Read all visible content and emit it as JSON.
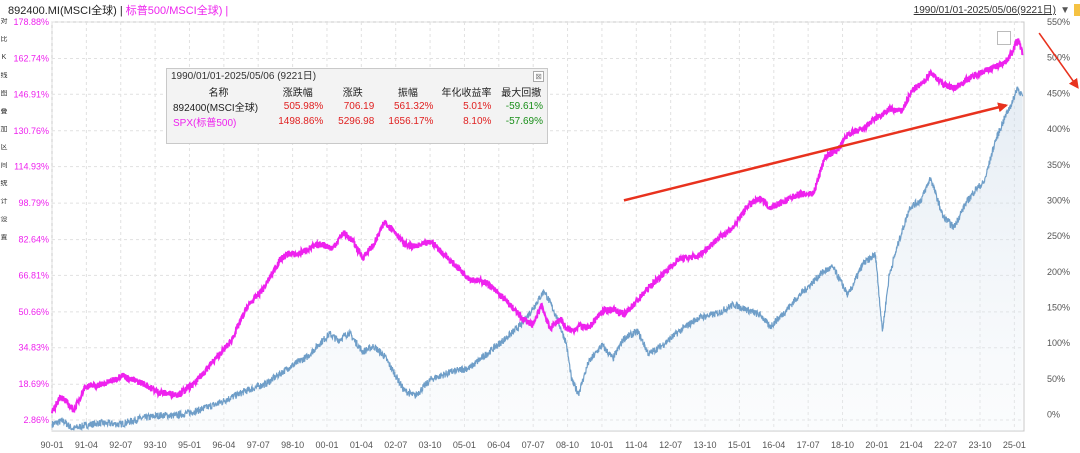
{
  "header": {
    "series1": "892400.MI(MSCI全球)",
    "separator": " | ",
    "series2": "标普500/MSCI全球)",
    "trailing": " |"
  },
  "toolbar": [
    "对",
    "比",
    "K",
    "线",
    "图",
    "叠",
    "加",
    "区",
    "间",
    "统",
    "计",
    "设",
    "置"
  ],
  "range_label": "1990/01/01-2025/05/06(9221日)",
  "range_arrow": "▼",
  "colors": {
    "msci": "#6f9ec8",
    "spx": "#ee22ee",
    "arrow": "#e8321e",
    "grid": "#e1e1e1"
  },
  "stats": {
    "caption": "1990/01/01-2025/05/06 (9221日)",
    "close": "⊠",
    "headers": [
      "名称",
      "涨跌幅",
      "涨跌",
      "振幅",
      "年化收益率",
      "最大回撤"
    ],
    "rows": [
      {
        "name": "892400(MSCI全球)",
        "chg_pct": "505.98%",
        "chg": "706.19",
        "amplitude": "561.32%",
        "annual": "5.01%",
        "drawdown": "-59.61%"
      },
      {
        "name": "SPX(标普500)",
        "chg_pct": "1498.86%",
        "chg": "5296.98",
        "amplitude": "1656.17%",
        "annual": "8.10%",
        "drawdown": "-57.69%"
      }
    ]
  },
  "chart_data": {
    "type": "line",
    "x_unit": "year",
    "xlim": [
      1990.0,
      2025.35
    ],
    "x_tick_labels": [
      "90-01",
      "91-04",
      "92-07",
      "93-10",
      "95-01",
      "96-04",
      "97-07",
      "98-10",
      "00-01",
      "01-04",
      "02-07",
      "03-10",
      "05-01",
      "06-04",
      "07-07",
      "08-10",
      "10-01",
      "11-04",
      "12-07",
      "13-10",
      "15-01",
      "16-04",
      "17-07",
      "18-10",
      "20-01",
      "21-04",
      "22-07",
      "23-10",
      "25-01"
    ],
    "y_left": {
      "ticks": [
        2.86,
        18.69,
        34.83,
        50.66,
        66.81,
        82.64,
        98.79,
        114.93,
        130.76,
        146.91,
        162.74,
        178.88
      ],
      "tick_labels": [
        "2.86%",
        "18.69%",
        "34.83%",
        "50.66%",
        "66.81%",
        "82.64%",
        "98.79%",
        "114.93%",
        "130.76%",
        "146.91%",
        "162.74%",
        "178.88%"
      ],
      "ylim": [
        -2.0,
        178.88
      ]
    },
    "y_right": {
      "tick_labels": [
        "0%",
        "50%",
        "100%",
        "150%",
        "200%",
        "250%",
        "300%",
        "350%",
        "400%",
        "450%",
        "500%",
        "550%"
      ],
      "ticks": [
        0,
        50,
        100,
        150,
        200,
        250,
        300,
        350,
        400,
        450,
        500,
        550
      ],
      "ylim": [
        -23,
        550
      ]
    },
    "series": [
      {
        "name": "892400(MSCI全球)",
        "axis": "left",
        "x": [
          1990.0,
          1990.4,
          1990.75,
          1991.2,
          1991.7,
          1992.5,
          1993.2,
          1994.0,
          1994.5,
          1995.3,
          1996.0,
          1997.0,
          1997.8,
          1998.6,
          1999.3,
          1999.8,
          2000.1,
          2000.4,
          2000.8,
          2001.3,
          2001.7,
          2002.1,
          2002.5,
          2002.8,
          2003.2,
          2003.8,
          2004.5,
          2005.2,
          2006.0,
          2006.6,
          2007.1,
          2007.5,
          2007.9,
          2008.3,
          2008.7,
          2008.9,
          2009.15,
          2009.5,
          2010.0,
          2010.4,
          2010.8,
          2011.3,
          2011.7,
          2012.2,
          2012.8,
          2013.5,
          2014.2,
          2014.8,
          2015.3,
          2015.8,
          2016.1,
          2016.6,
          2017.1,
          2017.6,
          2018.0,
          2018.4,
          2018.95,
          2019.5,
          2019.95,
          2020.2,
          2020.45,
          2020.8,
          2021.2,
          2021.6,
          2021.95,
          2022.4,
          2022.8,
          2023.2,
          2023.6,
          2023.9,
          2024.3,
          2024.7,
          2024.95,
          2025.1,
          2025.2,
          2025.3
        ],
        "y": [
          1.0,
          2.5,
          -1.0,
          0.5,
          1.5,
          1.0,
          3.5,
          5.0,
          4.8,
          7.0,
          10.0,
          15.5,
          19.0,
          26.0,
          31.0,
          37.5,
          41.0,
          38.0,
          41.5,
          33.0,
          35.5,
          31.0,
          22.5,
          16.0,
          13.5,
          21.0,
          24.0,
          26.0,
          34.0,
          40.0,
          45.5,
          52.5,
          60.0,
          50.0,
          37.0,
          20.5,
          14.5,
          28.0,
          36.0,
          30.0,
          39.0,
          42.0,
          32.0,
          36.0,
          42.0,
          48.0,
          50.0,
          54.0,
          51.5,
          49.0,
          44.0,
          50.0,
          57.0,
          63.0,
          68.0,
          70.5,
          58.0,
          72.0,
          76.0,
          42.0,
          67.0,
          82.0,
          97.0,
          100.0,
          110.0,
          93.0,
          88.0,
          98.0,
          105.0,
          108.0,
          126.0,
          138.0,
          144.0,
          150.0,
          148.0,
          146.0
        ]
      },
      {
        "name": "SPX(标普500)",
        "axis": "right",
        "x": [
          1990.0,
          1990.3,
          1990.8,
          1991.2,
          1991.8,
          1992.3,
          1992.55,
          1992.8,
          1993.3,
          1993.9,
          1994.6,
          1995.2,
          1995.8,
          1996.5,
          1997.1,
          1997.7,
          1998.3,
          1998.6,
          1998.9,
          1999.3,
          1999.8,
          2000.2,
          2000.6,
          2000.9,
          2001.3,
          2001.7,
          2002.1,
          2002.5,
          2002.8,
          2003.2,
          2003.8,
          2004.5,
          2005.2,
          2005.8,
          2006.5,
          2007.1,
          2007.5,
          2007.8,
          2008.1,
          2008.5,
          2008.7,
          2008.95,
          2009.2,
          2009.5,
          2010.0,
          2010.4,
          2010.8,
          2011.3,
          2011.7,
          2012.3,
          2012.8,
          2013.5,
          2014.2,
          2014.8,
          2015.3,
          2015.8,
          2016.1,
          2016.6,
          2017.1,
          2017.7,
          2018.1,
          2018.6,
          2018.95,
          2019.5,
          2019.95,
          2020.2,
          2020.45,
          2020.9,
          2021.3,
          2021.7,
          2021.95,
          2022.4,
          2022.8,
          2023.3,
          2023.8,
          2024.2,
          2024.7,
          2024.95,
          2025.1,
          2025.2,
          2025.3
        ],
        "y": [
          2.0,
          26.0,
          6.0,
          39.0,
          42.0,
          49.0,
          56.0,
          50.0,
          44.0,
          31.0,
          28.0,
          44.0,
          72.0,
          102.0,
          151.0,
          177.0,
          217.0,
          226.0,
          224.0,
          232.0,
          239.0,
          233.0,
          255.0,
          245.0,
          220.0,
          238.0,
          270.0,
          255.0,
          239.0,
          235.0,
          242.0,
          215.0,
          190.0,
          185.0,
          160.0,
          135.0,
          125.0,
          155.0,
          120.0,
          135.0,
          120.0,
          118.0,
          125.0,
          120.0,
          145.0,
          148.0,
          140.0,
          160.0,
          178.0,
          200.0,
          218.0,
          222.0,
          246.0,
          263.0,
          293.0,
          303.0,
          290.0,
          298.0,
          308.0,
          310.0,
          360.0,
          372.0,
          393.0,
          400.0,
          415.0,
          420.0,
          428.0,
          425.0,
          455.0,
          465.0,
          480.0,
          463.0,
          457.0,
          470.0,
          480.0,
          485.0,
          495.0,
          510.0,
          525.0,
          518.0,
          505.0
        ]
      }
    ],
    "annotation_arrows": [
      {
        "from": [
          2010.8,
          100.0
        ],
        "to": [
          2024.7,
          142.0
        ],
        "axis": "left"
      },
      {
        "from": [
          2025.9,
          174.0
        ],
        "to": [
          2027.3,
          150.0
        ],
        "axis": "left"
      }
    ],
    "grid": true,
    "legend": "top-left"
  }
}
